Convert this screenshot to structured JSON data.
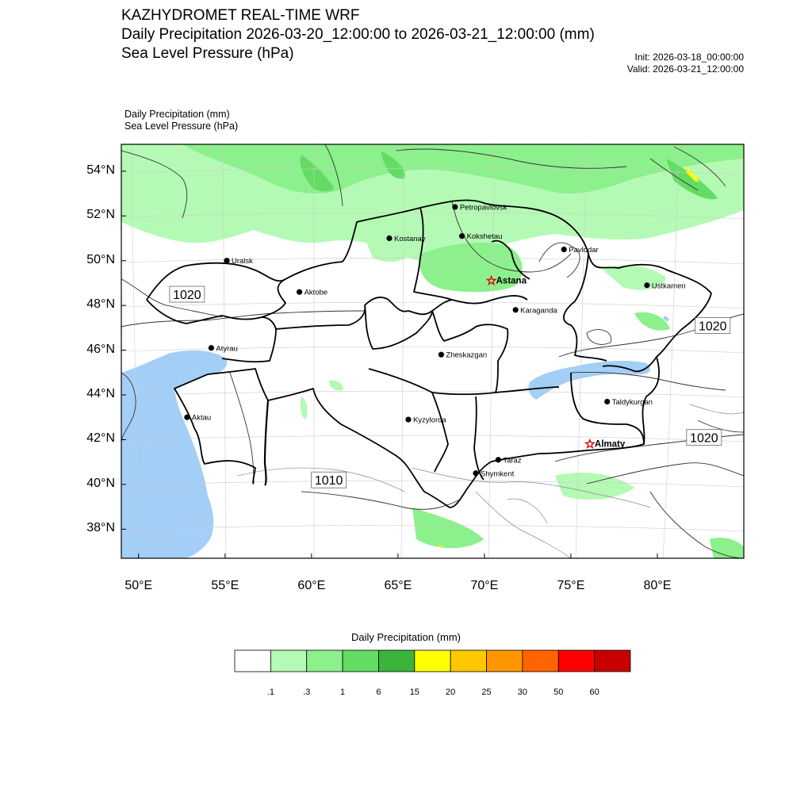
{
  "header": {
    "title": "KAZHYDROMET REAL-TIME WRF",
    "field1": "Daily Precipitation 2026-03-20_12:00:00 to 2026-03-21_12:00:00 (mm)",
    "field2": "Sea Level Pressure  (hPa)",
    "init": "Init: 2026-03-18_00:00:00",
    "valid": "Valid: 2026-03-21_12:00:00"
  },
  "subhead": {
    "line1": "Daily Precipitation   (mm)",
    "line2": "Sea Level Pressure   (hPa)"
  },
  "map": {
    "lat_labels": [
      "54°N",
      "52°N",
      "50°N",
      "48°N",
      "46°N",
      "44°N",
      "42°N",
      "40°N",
      "38°N"
    ],
    "lat_values": [
      54,
      52,
      50,
      48,
      46,
      44,
      42,
      40,
      38
    ],
    "lon_labels": [
      "50°E",
      "55°E",
      "60°E",
      "65°E",
      "70°E",
      "75°E",
      "80°E"
    ],
    "lon_values": [
      50,
      55,
      60,
      65,
      70,
      75,
      80
    ],
    "lon_range": [
      49.0,
      85.0
    ],
    "lat_range": [
      36.7,
      55.2
    ],
    "cities": [
      {
        "name": "Petropavlovsk",
        "lon": 68.3,
        "lat": 52.4,
        "capital": false
      },
      {
        "name": "Kostanay",
        "lon": 64.5,
        "lat": 51.0,
        "capital": false
      },
      {
        "name": "Kokshetau",
        "lon": 68.7,
        "lat": 51.1,
        "capital": false
      },
      {
        "name": "Uralsk",
        "lon": 55.1,
        "lat": 50.0,
        "capital": false
      },
      {
        "name": "Pavlodar",
        "lon": 74.6,
        "lat": 50.5,
        "capital": false
      },
      {
        "name": "Astana",
        "lon": 70.4,
        "lat": 49.1,
        "capital": true
      },
      {
        "name": "Ustkamen",
        "lon": 79.4,
        "lat": 48.9,
        "capital": false
      },
      {
        "name": "Aktobe",
        "lon": 59.3,
        "lat": 48.6,
        "capital": false
      },
      {
        "name": "Karaganda",
        "lon": 71.8,
        "lat": 47.8,
        "capital": false
      },
      {
        "name": "Atyrau",
        "lon": 54.2,
        "lat": 46.1,
        "capital": false
      },
      {
        "name": "Zheskazgan",
        "lon": 67.5,
        "lat": 45.8,
        "capital": false
      },
      {
        "name": "Taldykurgan",
        "lon": 77.1,
        "lat": 43.7,
        "capital": false
      },
      {
        "name": "Aktau",
        "lon": 52.8,
        "lat": 43.0,
        "capital": false
      },
      {
        "name": "Kyzylorda",
        "lon": 65.6,
        "lat": 42.9,
        "capital": false
      },
      {
        "name": "Almaty",
        "lon": 76.1,
        "lat": 41.8,
        "capital": true
      },
      {
        "name": "Taraz",
        "lon": 70.8,
        "lat": 41.1,
        "capital": false
      },
      {
        "name": "Shymkent",
        "lon": 69.5,
        "lat": 40.5,
        "capital": false
      }
    ],
    "isobar_labels": [
      {
        "text": "1020",
        "lon": 52.8,
        "lat": 48.5
      },
      {
        "text": "1020",
        "lon": 83.2,
        "lat": 47.1
      },
      {
        "text": "1020",
        "lon": 82.7,
        "lat": 42.1
      },
      {
        "text": "1010",
        "lon": 61.0,
        "lat": 40.2
      }
    ]
  },
  "colorbar": {
    "title": "Daily Precipitation (mm)",
    "colors": [
      "#ffffff",
      "#b4fab4",
      "#8cf08c",
      "#64dc64",
      "#3cb43c",
      "#ffff00",
      "#ffc800",
      "#ff9600",
      "#ff6400",
      "#ff0000",
      "#c80000"
    ],
    "labels": [
      ".1",
      ".3",
      "1",
      "6",
      "15",
      "20",
      "25",
      "30",
      "50",
      "60"
    ]
  },
  "colors": {
    "water": "#a3cff7",
    "precip_light": "#b4fab4",
    "precip_mid": "#8cf08c",
    "precip_heavy": "#64dc64"
  }
}
